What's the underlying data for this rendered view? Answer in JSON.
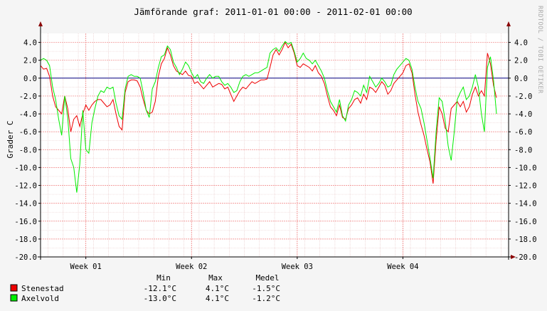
{
  "chart_data": {
    "type": "line",
    "title": "Jämförande graf: 2011-01-01 00:00 - 2011-02-01 00:00",
    "ylabel": "Grader C",
    "xlabel": "",
    "watermark": "RRDTOOL / TOBI OETIKER",
    "ylim": [
      -20,
      5
    ],
    "y_ticks": [
      "4.0",
      "2.0",
      "0.0",
      "-2.0",
      "-4.0",
      "-6.0",
      "-8.0",
      "-10.0",
      "-12.0",
      "-14.0",
      "-16.0",
      "-18.0",
      "-20.0"
    ],
    "x_range_days": [
      0,
      31
    ],
    "x_ticks": [
      {
        "label": "Week 01",
        "day": 3
      },
      {
        "label": "Week 02",
        "day": 10
      },
      {
        "label": "Week 03",
        "day": 17
      },
      {
        "label": "Week 04",
        "day": 24
      }
    ],
    "grid": true,
    "legend_position": "bottom-left",
    "legend_headers": [
      "Min",
      "Max",
      "Medel"
    ],
    "series": [
      {
        "name": "Stenestad",
        "color": "#ee0000",
        "stats": [
          "-12.1°C",
          "4.1°C",
          "-1.5°C"
        ],
        "points": [
          [
            0,
            1.4
          ],
          [
            0.2,
            1.0
          ],
          [
            0.4,
            1.1
          ],
          [
            0.6,
            0.2
          ],
          [
            0.8,
            -2.0
          ],
          [
            1.0,
            -3.2
          ],
          [
            1.2,
            -3.6
          ],
          [
            1.4,
            -4.0
          ],
          [
            1.6,
            -2.0
          ],
          [
            1.8,
            -3.4
          ],
          [
            2.0,
            -6.0
          ],
          [
            2.2,
            -4.6
          ],
          [
            2.4,
            -4.2
          ],
          [
            2.6,
            -5.4
          ],
          [
            2.8,
            -4.0
          ],
          [
            3.0,
            -3.0
          ],
          [
            3.2,
            -3.6
          ],
          [
            3.4,
            -3.0
          ],
          [
            3.6,
            -2.6
          ],
          [
            3.8,
            -2.4
          ],
          [
            4.0,
            -2.4
          ],
          [
            4.2,
            -2.8
          ],
          [
            4.4,
            -3.2
          ],
          [
            4.6,
            -3.0
          ],
          [
            4.8,
            -2.4
          ],
          [
            5.0,
            -4.0
          ],
          [
            5.2,
            -5.4
          ],
          [
            5.4,
            -5.8
          ],
          [
            5.6,
            -1.6
          ],
          [
            5.8,
            -0.4
          ],
          [
            6.0,
            -0.2
          ],
          [
            6.2,
            -0.2
          ],
          [
            6.4,
            -0.3
          ],
          [
            6.6,
            -1.0
          ],
          [
            6.8,
            -2.4
          ],
          [
            7.0,
            -3.6
          ],
          [
            7.2,
            -4.0
          ],
          [
            7.4,
            -3.8
          ],
          [
            7.6,
            -2.6
          ],
          [
            7.8,
            0.2
          ],
          [
            8.0,
            1.6
          ],
          [
            8.2,
            2.2
          ],
          [
            8.4,
            3.4
          ],
          [
            8.6,
            2.6
          ],
          [
            8.8,
            1.4
          ],
          [
            9.0,
            0.8
          ],
          [
            9.2,
            0.6
          ],
          [
            9.4,
            0.4
          ],
          [
            9.6,
            0.8
          ],
          [
            9.8,
            0.3
          ],
          [
            10.0,
            0.2
          ],
          [
            10.2,
            -0.6
          ],
          [
            10.4,
            -0.4
          ],
          [
            10.6,
            -0.8
          ],
          [
            10.8,
            -1.2
          ],
          [
            11.0,
            -0.8
          ],
          [
            11.2,
            -0.4
          ],
          [
            11.4,
            -1.0
          ],
          [
            11.6,
            -0.8
          ],
          [
            11.8,
            -0.6
          ],
          [
            12.0,
            -0.7
          ],
          [
            12.2,
            -1.2
          ],
          [
            12.4,
            -1.0
          ],
          [
            12.6,
            -1.8
          ],
          [
            12.8,
            -2.6
          ],
          [
            13.0,
            -2.0
          ],
          [
            13.2,
            -1.4
          ],
          [
            13.4,
            -1.0
          ],
          [
            13.6,
            -1.2
          ],
          [
            13.8,
            -0.8
          ],
          [
            14.0,
            -0.4
          ],
          [
            14.2,
            -0.6
          ],
          [
            14.4,
            -0.4
          ],
          [
            14.6,
            -0.2
          ],
          [
            14.8,
            -0.2
          ],
          [
            15.0,
            -0.1
          ],
          [
            15.2,
            1.2
          ],
          [
            15.4,
            2.6
          ],
          [
            15.6,
            3.2
          ],
          [
            15.8,
            2.6
          ],
          [
            16.0,
            3.2
          ],
          [
            16.2,
            4.0
          ],
          [
            16.4,
            3.4
          ],
          [
            16.6,
            3.8
          ],
          [
            16.8,
            2.8
          ],
          [
            17.0,
            1.4
          ],
          [
            17.2,
            1.2
          ],
          [
            17.4,
            1.6
          ],
          [
            17.6,
            1.4
          ],
          [
            17.8,
            1.2
          ],
          [
            18.0,
            0.8
          ],
          [
            18.2,
            1.4
          ],
          [
            18.4,
            0.6
          ],
          [
            18.6,
            0.2
          ],
          [
            18.8,
            -0.6
          ],
          [
            19.0,
            -2.0
          ],
          [
            19.2,
            -3.2
          ],
          [
            19.4,
            -3.6
          ],
          [
            19.6,
            -4.2
          ],
          [
            19.8,
            -3.0
          ],
          [
            20.0,
            -4.4
          ],
          [
            20.2,
            -4.6
          ],
          [
            20.4,
            -3.4
          ],
          [
            20.6,
            -3.0
          ],
          [
            20.8,
            -2.4
          ],
          [
            21.0,
            -2.2
          ],
          [
            21.2,
            -2.8
          ],
          [
            21.4,
            -1.8
          ],
          [
            21.6,
            -2.4
          ],
          [
            21.8,
            -1.0
          ],
          [
            22.0,
            -1.2
          ],
          [
            22.2,
            -1.6
          ],
          [
            22.4,
            -1.0
          ],
          [
            22.6,
            -0.4
          ],
          [
            22.8,
            -0.8
          ],
          [
            23.0,
            -1.8
          ],
          [
            23.2,
            -1.4
          ],
          [
            23.4,
            -0.6
          ],
          [
            23.6,
            -0.2
          ],
          [
            23.8,
            0.2
          ],
          [
            24.0,
            0.6
          ],
          [
            24.2,
            1.4
          ],
          [
            24.4,
            1.6
          ],
          [
            24.6,
            0.6
          ],
          [
            24.8,
            -1.8
          ],
          [
            25.0,
            -3.8
          ],
          [
            25.2,
            -5.2
          ],
          [
            25.4,
            -6.4
          ],
          [
            25.6,
            -8.0
          ],
          [
            25.8,
            -9.4
          ],
          [
            26.0,
            -11.8
          ],
          [
            26.2,
            -7.0
          ],
          [
            26.4,
            -3.2
          ],
          [
            26.6,
            -4.0
          ],
          [
            26.8,
            -5.6
          ],
          [
            27.0,
            -6.0
          ],
          [
            27.2,
            -3.4
          ],
          [
            27.4,
            -3.0
          ],
          [
            27.6,
            -2.6
          ],
          [
            27.8,
            -3.2
          ],
          [
            28.0,
            -2.6
          ],
          [
            28.2,
            -3.8
          ],
          [
            28.4,
            -3.2
          ],
          [
            28.6,
            -1.8
          ],
          [
            28.8,
            -1.0
          ],
          [
            29.0,
            -2.0
          ],
          [
            29.2,
            -1.4
          ],
          [
            29.4,
            -2.0
          ],
          [
            29.6,
            2.8
          ],
          [
            29.8,
            1.6
          ],
          [
            30.0,
            -0.8
          ],
          [
            30.2,
            -2.2
          ]
        ]
      },
      {
        "name": "Axelvold",
        "color": "#00ee00",
        "stats": [
          "-13.0°C",
          "4.1°C",
          "-1.2°C"
        ],
        "points": [
          [
            0,
            2.0
          ],
          [
            0.2,
            2.2
          ],
          [
            0.4,
            2.0
          ],
          [
            0.6,
            1.4
          ],
          [
            0.8,
            -1.0
          ],
          [
            1.0,
            -2.4
          ],
          [
            1.2,
            -4.6
          ],
          [
            1.4,
            -6.4
          ],
          [
            1.6,
            -2.0
          ],
          [
            1.8,
            -4.4
          ],
          [
            2.0,
            -9.0
          ],
          [
            2.2,
            -10.0
          ],
          [
            2.4,
            -12.8
          ],
          [
            2.6,
            -9.6
          ],
          [
            2.8,
            -3.6
          ],
          [
            3.0,
            -8.0
          ],
          [
            3.2,
            -8.4
          ],
          [
            3.4,
            -5.0
          ],
          [
            3.6,
            -3.4
          ],
          [
            3.8,
            -2.0
          ],
          [
            4.0,
            -1.4
          ],
          [
            4.2,
            -1.6
          ],
          [
            4.4,
            -1.0
          ],
          [
            4.6,
            -1.2
          ],
          [
            4.8,
            -1.0
          ],
          [
            5.0,
            -2.8
          ],
          [
            5.2,
            -4.2
          ],
          [
            5.4,
            -4.6
          ],
          [
            5.6,
            -1.2
          ],
          [
            5.8,
            0.2
          ],
          [
            6.0,
            0.4
          ],
          [
            6.2,
            0.2
          ],
          [
            6.4,
            0.2
          ],
          [
            6.6,
            0.0
          ],
          [
            6.8,
            -1.6
          ],
          [
            7.0,
            -3.6
          ],
          [
            7.2,
            -4.4
          ],
          [
            7.4,
            -1.2
          ],
          [
            7.6,
            -0.4
          ],
          [
            7.8,
            1.2
          ],
          [
            8.0,
            2.4
          ],
          [
            8.2,
            2.6
          ],
          [
            8.4,
            3.6
          ],
          [
            8.6,
            3.2
          ],
          [
            8.8,
            1.8
          ],
          [
            9.0,
            1.2
          ],
          [
            9.2,
            0.4
          ],
          [
            9.4,
            1.0
          ],
          [
            9.6,
            1.8
          ],
          [
            9.8,
            1.4
          ],
          [
            10.0,
            0.6
          ],
          [
            10.2,
            0.0
          ],
          [
            10.4,
            0.4
          ],
          [
            10.6,
            -0.4
          ],
          [
            10.8,
            -0.6
          ],
          [
            11.0,
            0.0
          ],
          [
            11.2,
            0.4
          ],
          [
            11.4,
            0.0
          ],
          [
            11.6,
            0.2
          ],
          [
            11.8,
            0.2
          ],
          [
            12.0,
            -0.4
          ],
          [
            12.2,
            -0.8
          ],
          [
            12.4,
            -0.6
          ],
          [
            12.6,
            -1.0
          ],
          [
            12.8,
            -1.6
          ],
          [
            13.0,
            -1.4
          ],
          [
            13.2,
            -0.4
          ],
          [
            13.4,
            0.2
          ],
          [
            13.6,
            0.4
          ],
          [
            13.8,
            0.2
          ],
          [
            14.0,
            0.4
          ],
          [
            14.2,
            0.6
          ],
          [
            14.4,
            0.6
          ],
          [
            14.6,
            0.8
          ],
          [
            14.8,
            1.0
          ],
          [
            15.0,
            1.2
          ],
          [
            15.2,
            2.8
          ],
          [
            15.4,
            3.2
          ],
          [
            15.6,
            3.4
          ],
          [
            15.8,
            3.0
          ],
          [
            16.0,
            3.6
          ],
          [
            16.2,
            4.1
          ],
          [
            16.4,
            3.8
          ],
          [
            16.6,
            4.0
          ],
          [
            16.8,
            3.0
          ],
          [
            17.0,
            1.8
          ],
          [
            17.2,
            2.2
          ],
          [
            17.4,
            2.8
          ],
          [
            17.6,
            2.2
          ],
          [
            17.8,
            2.0
          ],
          [
            18.0,
            1.6
          ],
          [
            18.2,
            2.0
          ],
          [
            18.4,
            1.4
          ],
          [
            18.6,
            0.8
          ],
          [
            18.8,
            0.0
          ],
          [
            19.0,
            -1.4
          ],
          [
            19.2,
            -2.6
          ],
          [
            19.4,
            -3.2
          ],
          [
            19.6,
            -3.8
          ],
          [
            19.8,
            -2.4
          ],
          [
            20.0,
            -4.2
          ],
          [
            20.2,
            -4.8
          ],
          [
            20.4,
            -3.0
          ],
          [
            20.6,
            -2.4
          ],
          [
            20.8,
            -1.4
          ],
          [
            21.0,
            -1.6
          ],
          [
            21.2,
            -2.0
          ],
          [
            21.4,
            -0.8
          ],
          [
            21.6,
            -1.6
          ],
          [
            21.8,
            0.2
          ],
          [
            22.0,
            -0.4
          ],
          [
            22.2,
            -1.0
          ],
          [
            22.4,
            -0.6
          ],
          [
            22.6,
            0.0
          ],
          [
            22.8,
            -0.4
          ],
          [
            23.0,
            -1.0
          ],
          [
            23.2,
            -0.8
          ],
          [
            23.4,
            0.4
          ],
          [
            23.6,
            1.0
          ],
          [
            23.8,
            1.4
          ],
          [
            24.0,
            1.8
          ],
          [
            24.2,
            2.2
          ],
          [
            24.4,
            2.0
          ],
          [
            24.6,
            1.0
          ],
          [
            24.8,
            -1.0
          ],
          [
            25.0,
            -2.6
          ],
          [
            25.2,
            -3.4
          ],
          [
            25.4,
            -5.0
          ],
          [
            25.6,
            -7.0
          ],
          [
            25.8,
            -9.0
          ],
          [
            26.0,
            -11.2
          ],
          [
            26.2,
            -6.0
          ],
          [
            26.4,
            -2.2
          ],
          [
            26.6,
            -2.6
          ],
          [
            26.8,
            -4.8
          ],
          [
            27.0,
            -7.6
          ],
          [
            27.2,
            -9.2
          ],
          [
            27.4,
            -6.0
          ],
          [
            27.6,
            -2.4
          ],
          [
            27.8,
            -1.6
          ],
          [
            28.0,
            -1.0
          ],
          [
            28.2,
            -2.4
          ],
          [
            28.4,
            -2.0
          ],
          [
            28.6,
            -1.0
          ],
          [
            28.8,
            0.4
          ],
          [
            29.0,
            -1.0
          ],
          [
            29.2,
            -4.0
          ],
          [
            29.4,
            -6.0
          ],
          [
            29.6,
            1.2
          ],
          [
            29.8,
            2.4
          ],
          [
            30.0,
            -0.2
          ],
          [
            30.2,
            -4.0
          ]
        ]
      }
    ]
  }
}
